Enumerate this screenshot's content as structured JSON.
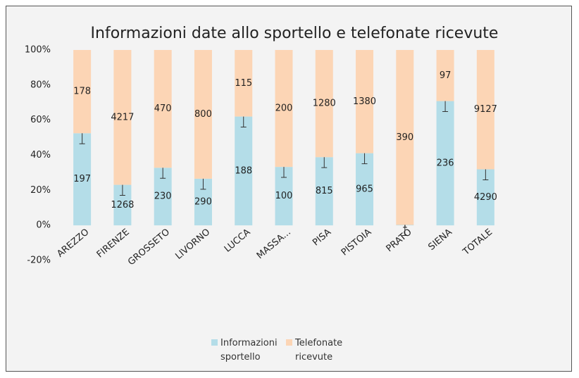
{
  "chart_data": {
    "type": "bar",
    "stacking": "percent",
    "title": "Informazioni date allo sportello e telefonate ricevute",
    "categories": [
      "AREZZO",
      "FIRENZE",
      "GROSSETO",
      "LIVORNO",
      "LUCCA",
      "MASSA...",
      "PISA",
      "PISTOIA",
      "PRATO",
      "SIENA",
      "TOTALE"
    ],
    "series": [
      {
        "name": "Informazioni sportello",
        "color": "#b4dde8",
        "values": [
          197,
          1268,
          230,
          290,
          188,
          100,
          815,
          965,
          1,
          236,
          4290
        ],
        "errors": [
          6,
          6,
          6,
          6,
          6,
          6,
          6,
          6,
          6,
          6,
          6
        ]
      },
      {
        "name": "Telefonate ricevute",
        "color": "#fcd5b5",
        "values": [
          178,
          4217,
          470,
          800,
          115,
          200,
          1280,
          1380,
          390,
          97,
          9127
        ]
      }
    ],
    "ylim": [
      -20,
      100
    ],
    "yticks": [
      {
        "value": -20,
        "label": "-20%"
      },
      {
        "value": 0,
        "label": "0%"
      },
      {
        "value": 20,
        "label": "20%"
      },
      {
        "value": 40,
        "label": "40%"
      },
      {
        "value": 60,
        "label": "60%"
      },
      {
        "value": 80,
        "label": "80%"
      },
      {
        "value": 100,
        "label": "100%"
      }
    ],
    "grid": false,
    "legend": "bottom"
  }
}
